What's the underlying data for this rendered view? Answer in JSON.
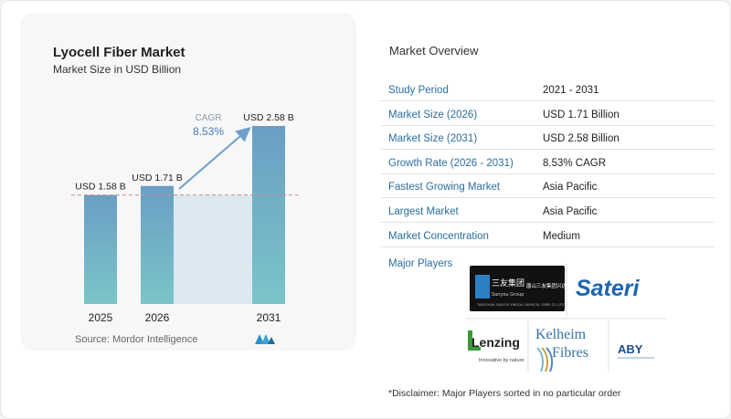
{
  "chart": {
    "title": "Lyocell Fiber Market",
    "subtitle": "Market Size in USD Billion",
    "source": "Source:  Mordor Intelligence",
    "cagr_label": "CAGR",
    "cagr_value": "8.53%"
  },
  "chart_data": {
    "type": "bar",
    "title": "Lyocell Fiber Market",
    "subtitle": "Market Size in USD Billion",
    "categories": [
      "2025",
      "2026",
      "2031"
    ],
    "values": [
      1.58,
      1.71,
      2.58
    ],
    "data_labels": [
      "USD 1.58 B",
      "USD 1.71 B",
      "USD 2.58 B"
    ],
    "ylim": [
      0,
      2.6
    ],
    "annotation": "CAGR 8.53%",
    "colors": {
      "bar_top": "#6b9ec4",
      "bar_bottom": "#7ac5c9",
      "shade": "#dde8f1",
      "arrow": "#6e9fcb"
    }
  },
  "overview": {
    "title": "Market Overview",
    "rows": [
      {
        "label": "Study Period",
        "value": "2021 - 2031"
      },
      {
        "label": "Market Size (2026)",
        "value": "USD 1.71 Billion"
      },
      {
        "label": "Market Size (2031)",
        "value": "USD 2.58 Billion"
      },
      {
        "label": "Growth Rate (2026 - 2031)",
        "value": "8.53% CAGR"
      },
      {
        "label": "Fastest Growing Market",
        "value": "Asia Pacific"
      },
      {
        "label": "Largest Market",
        "value": "Asia Pacific"
      },
      {
        "label": "Market Concentration",
        "value": "Medium"
      }
    ],
    "players_label": "Major Players",
    "players": {
      "sanyou": {
        "name": "三友集团",
        "sub": "Sanyou Group",
        "cn": "唐山三友集团兴达化纤有限公司"
      },
      "sateri": "Sateri",
      "lenzing": {
        "name": "Lenzing",
        "tag": "Innovative by nature"
      },
      "kelheim": {
        "line1": "Kelheim",
        "line2": "Fibres"
      },
      "aby": "ABY"
    },
    "disclaimer": "*Disclaimer: Major Players sorted in no particular order"
  },
  "colors": {
    "accent": "#2b6e9e",
    "text": "#333333"
  }
}
